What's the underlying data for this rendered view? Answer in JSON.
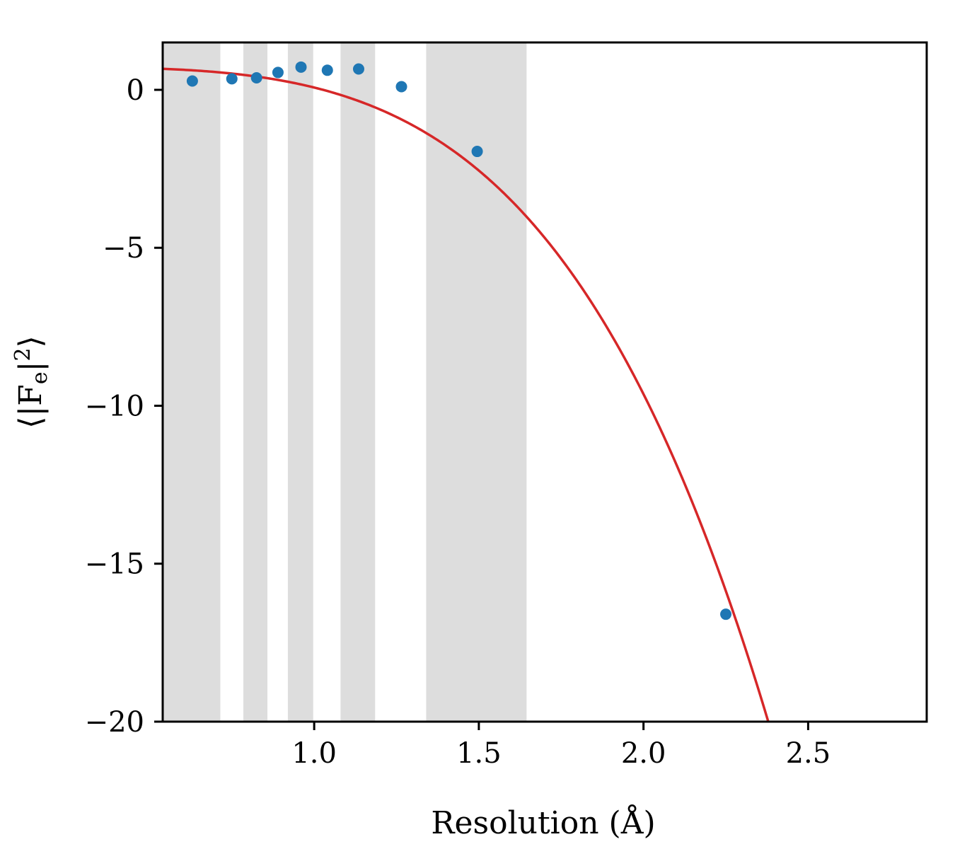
{
  "chart_data": {
    "type": "scatter",
    "xlabel": "Resolution (Å)",
    "ylabel": "⟨|F",
    "ylabel_sub": "e",
    "ylabel_tail": "|",
    "ylabel_sup": "2",
    "ylabel_close": "⟩",
    "xlim": [
      0.54,
      2.86
    ],
    "ylim": [
      -20,
      1.5
    ],
    "x_ticks": [
      1.0,
      1.5,
      2.0,
      2.5
    ],
    "x_tick_labels": [
      "1.0",
      "1.5",
      "2.0",
      "2.5"
    ],
    "y_ticks": [
      0,
      -5,
      -10,
      -15,
      -20
    ],
    "y_tick_labels": [
      "0",
      "−5",
      "−10",
      "−15",
      "−20"
    ],
    "shaded_bands": [
      [
        0.54,
        0.715
      ],
      [
        0.785,
        0.858
      ],
      [
        0.92,
        0.997
      ],
      [
        1.08,
        1.185
      ],
      [
        1.34,
        1.645
      ]
    ],
    "points": [
      {
        "x": 0.63,
        "y": 0.28
      },
      {
        "x": 0.75,
        "y": 0.35
      },
      {
        "x": 0.825,
        "y": 0.38
      },
      {
        "x": 0.89,
        "y": 0.55
      },
      {
        "x": 0.96,
        "y": 0.72
      },
      {
        "x": 1.04,
        "y": 0.62
      },
      {
        "x": 1.135,
        "y": 0.66
      },
      {
        "x": 1.265,
        "y": 0.1
      },
      {
        "x": 1.495,
        "y": -1.95
      },
      {
        "x": 2.25,
        "y": -16.6
      }
    ],
    "fit_curve": {
      "type": "polynomial",
      "a0": 0.72,
      "a4": -0.647
    },
    "colors": {
      "points": "#1f77b4",
      "fit": "#d62728",
      "band": "#dddddd",
      "axis": "#000000"
    },
    "grid": false
  }
}
